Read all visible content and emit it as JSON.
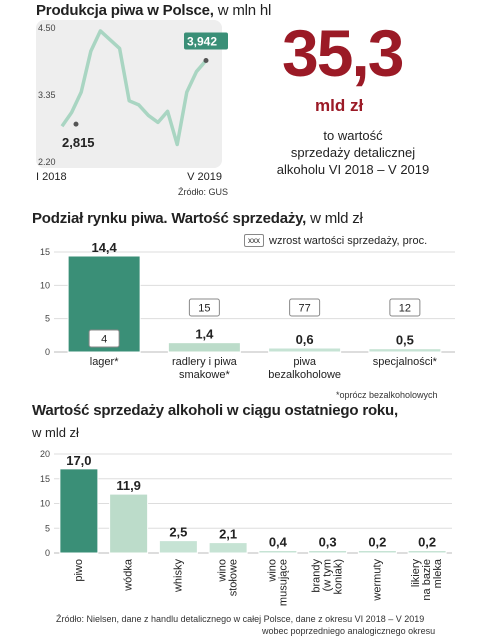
{
  "panel1": {
    "title": "Produkcja piwa w Polsce,",
    "unit": " w mln hl",
    "source": "Źródło: GUS",
    "big_value": "35,3",
    "big_unit": "mld zł",
    "description": [
      "to wartość",
      "sprzedaży detalicznej",
      "alkoholu  VI 2018 – V 2019"
    ],
    "start_label": "2,815",
    "end_label": "3,942",
    "colors": {
      "line": "#a9d5c2",
      "label_bg": "#3a8f77",
      "panel_bg": "#eeeeee",
      "accent": "#9b1a26"
    }
  },
  "panel2": {
    "title": "Podział rynku piwa. Wartość sprzedaży,",
    "unit": " w mld zł",
    "legend_box": "xxx",
    "legend_text": "wzrost wartości sprzedaży, proc.",
    "footnote": "*oprócz bezalkoholowych"
  },
  "panel3": {
    "title": "Wartość sprzedaży alkoholi w ciągu ostatniego roku,",
    "unit": "w mld zł",
    "source_line1": "Źródło: Nielsen, dane z handlu detalicznego w całej Polsce, dane z okresu VI 2018 – V 2019",
    "source_line2": "wobec poprzedniego analogicznego okresu"
  },
  "chart_data": [
    {
      "type": "line",
      "title": "Produkcja piwa w Polsce, w mln hl",
      "x_labels": [
        "I 2018",
        "V 2019"
      ],
      "y_ticks": [
        "4.50",
        "3.35",
        "2.20"
      ],
      "ylim": [
        2.2,
        4.5
      ],
      "values": [
        2.815,
        3.05,
        3.4,
        4.1,
        4.45,
        4.3,
        4.15,
        3.25,
        3.18,
        3.0,
        2.88,
        3.07,
        2.5,
        3.4,
        3.75,
        3.942
      ],
      "annotations": {
        "start": "2,815",
        "end": "3,942"
      }
    },
    {
      "type": "bar",
      "title": "Podział rynku piwa. Wartość sprzedaży, w mld zł",
      "categories": [
        "lager*",
        "radlery i piwa smakowe*",
        "piwa bezalkoholowe",
        "specjalności*"
      ],
      "category_lines": [
        [
          "lager*"
        ],
        [
          "radlery i piwa",
          "smakowe*"
        ],
        [
          "piwa",
          "bezalkoholowe"
        ],
        [
          "specjalności*"
        ]
      ],
      "values": [
        14.4,
        1.4,
        0.6,
        0.5
      ],
      "value_labels": [
        "14,4",
        "1,4",
        "0,6",
        "0,5"
      ],
      "growth_labels": [
        "4",
        "15",
        "77",
        "12"
      ],
      "y_ticks": [
        "15",
        "10",
        "5",
        "0"
      ],
      "ylim": [
        0,
        15
      ]
    },
    {
      "type": "bar",
      "title": "Wartość sprzedaży alkoholi w ciągu ostatniego roku, w mld zł",
      "categories": [
        "piwo",
        "wódka",
        "whisky",
        "wino stołowe",
        "wino musujące",
        "brandy (w tym koniak)",
        "wermuty",
        "likiery na bazie mleka"
      ],
      "category_lines": [
        [
          "piwo"
        ],
        [
          "wódka"
        ],
        [
          "whisky"
        ],
        [
          "wino",
          "stołowe"
        ],
        [
          "wino",
          "musujące"
        ],
        [
          "brandy",
          "(w tym",
          "koniak)"
        ],
        [
          "wermuty"
        ],
        [
          "likiery",
          "na bazie",
          "mleka"
        ]
      ],
      "values": [
        17.0,
        11.9,
        2.5,
        2.1,
        0.4,
        0.3,
        0.2,
        0.2
      ],
      "value_labels": [
        "17,0",
        "11,9",
        "2,5",
        "2,1",
        "0,4",
        "0,3",
        "0,2",
        "0,2"
      ],
      "y_ticks": [
        "20",
        "15",
        "10",
        "5",
        "0"
      ],
      "ylim": [
        0,
        20
      ]
    }
  ]
}
